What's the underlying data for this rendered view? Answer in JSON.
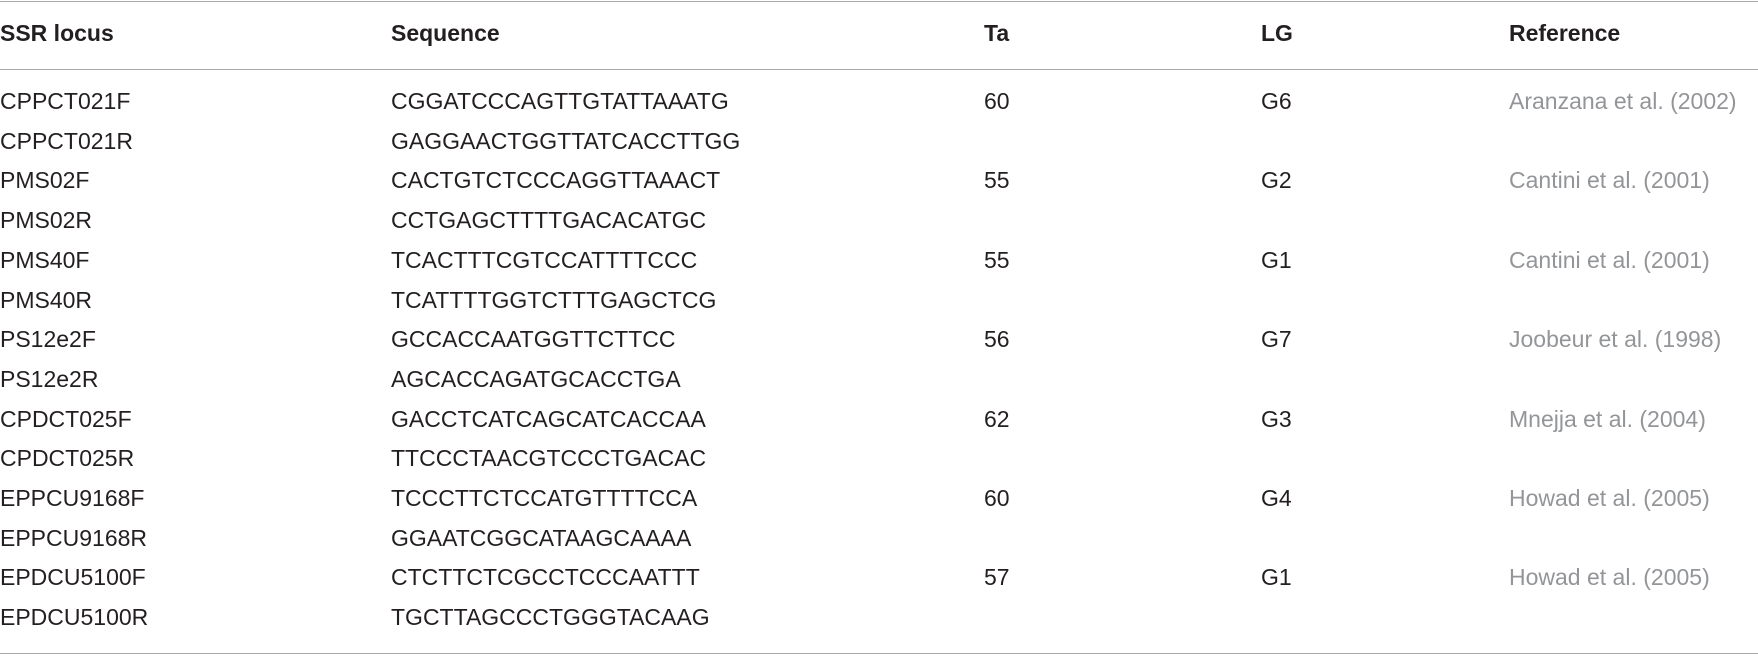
{
  "table": {
    "header": [
      "SSR locus",
      "Sequence",
      "Ta",
      "LG",
      "Reference"
    ],
    "rows": [
      {
        "locus": "CPPCT021F",
        "sequence": "CGGATCCCAGTTGTATTAAATG",
        "ta": 60,
        "lg": "G6",
        "reference": "Aranzana et al. (2002)"
      },
      {
        "locus": "CPPCT021R",
        "sequence": "GAGGAACTGGTTATCACCTTGG"
      },
      {
        "locus": "PMS02F",
        "sequence": "CACTGTCTCCCAGGTTAAACT",
        "ta": 55,
        "lg": "G2",
        "reference": "Cantini et al. (2001)"
      },
      {
        "locus": "PMS02R",
        "sequence": "CCTGAGCTTTTGACACATGC"
      },
      {
        "locus": "PMS40F",
        "sequence": "TCACTTTCGTCCATTTTCCC",
        "ta": 55,
        "lg": "G1",
        "reference": "Cantini et al. (2001)"
      },
      {
        "locus": "PMS40R",
        "sequence": "TCATTTTGGTCTTTGAGCTCG"
      },
      {
        "locus": "PS12e2F",
        "sequence": "GCCACCAATGGTTCTTCC",
        "ta": 56,
        "lg": "G7",
        "reference": "Joobeur et al. (1998)"
      },
      {
        "locus": "PS12e2R",
        "sequence": "AGCACCAGATGCACCTGA"
      },
      {
        "locus": "CPDCT025F",
        "sequence": "GACCTCATCAGCATCACCAA",
        "ta": 62,
        "lg": "G3",
        "reference": "Mnejja et al. (2004)"
      },
      {
        "locus": "CPDCT025R",
        "sequence": "TTCCCTAACGTCCCTGACAC"
      },
      {
        "locus": "EPPCU9168F",
        "sequence": "TCCCTTCTCCATGTTTTCCA",
        "ta": 60,
        "lg": "G4",
        "reference": "Howad et al. (2005)"
      },
      {
        "locus": "EPPCU9168R",
        "sequence": "GGAATCGGCATAAGCAAAA"
      },
      {
        "locus": "EPDCU5100F",
        "sequence": "CTCTTCTCGCCTCCCAATTT",
        "ta": 57,
        "lg": "G1",
        "reference": "Howad et al. (2005)"
      },
      {
        "locus": "EPDCU5100R",
        "sequence": "TGCTTAGCCCTGGGTACAAG"
      }
    ]
  }
}
